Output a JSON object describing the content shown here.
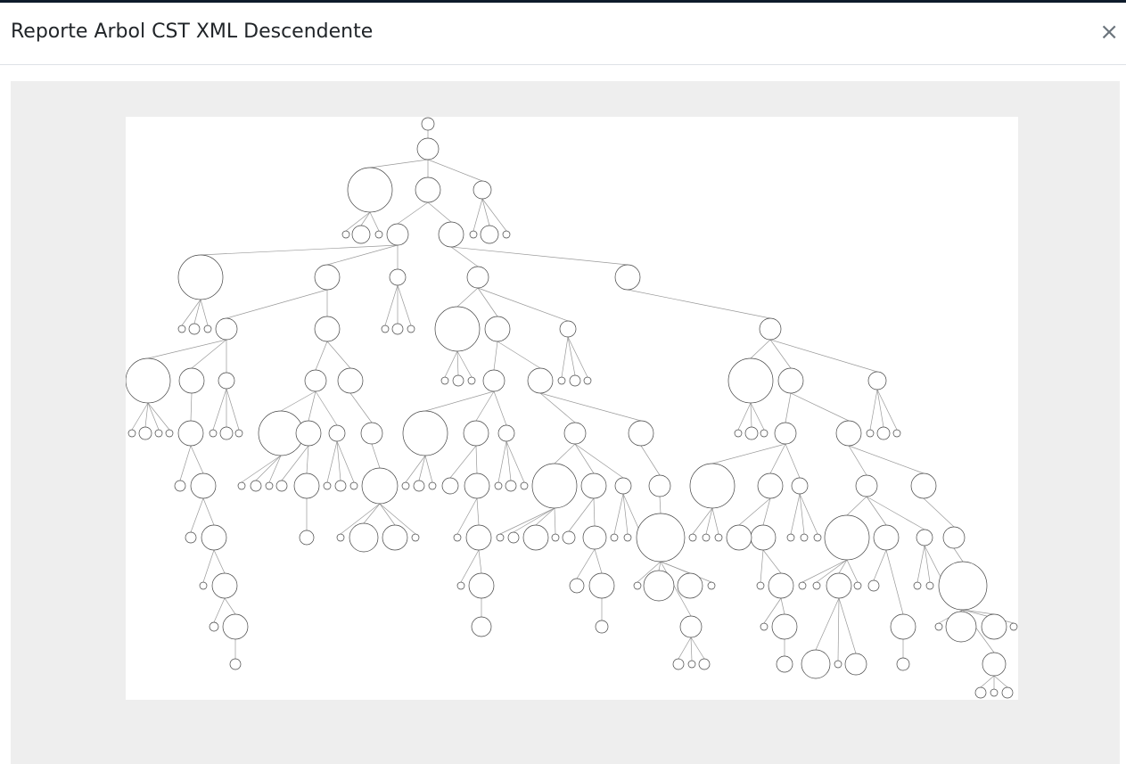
{
  "header": {
    "title": "Reporte Arbol CST XML Descendente",
    "close": "×"
  }
}
